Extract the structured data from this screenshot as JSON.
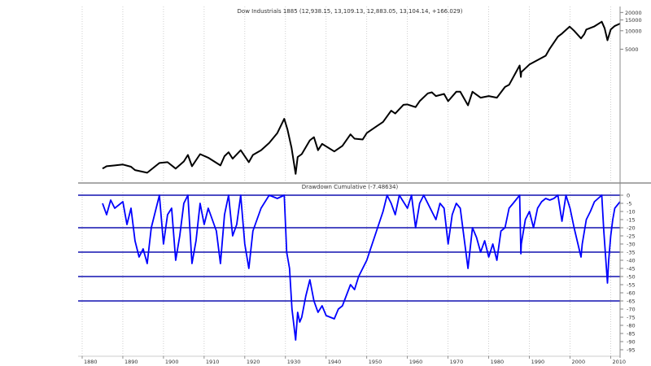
{
  "chart_data": [
    {
      "type": "line",
      "title": "Dow Industrials 1885 (12,938.15, 13,109.13, 12,883.05, 13,104.14, +166.029)",
      "scale": "log",
      "y_tick_labels": [
        "20000",
        "15000",
        "10000",
        "5000"
      ],
      "y_ticks": [
        20000,
        15000,
        10000,
        5000
      ],
      "ylim": [
        35,
        25000
      ],
      "series": [
        {
          "color": "#000000",
          "x": [
            1885,
            1886,
            1888,
            1890,
            1892,
            1893,
            1896,
            1899,
            1901,
            1903,
            1905,
            1906,
            1907,
            1909,
            1911,
            1914,
            1915,
            1916,
            1917,
            1919,
            1921,
            1922,
            1924,
            1926,
            1928,
            1929.7,
            1930.5,
            1931.5,
            1932.5,
            1933,
            1934,
            1936,
            1937,
            1938,
            1939,
            1942,
            1944,
            1946,
            1947,
            1949,
            1950,
            1952,
            1954,
            1956,
            1957,
            1959,
            1960,
            1962,
            1963,
            1965,
            1966,
            1967,
            1969,
            1970,
            1972,
            1973,
            1974.9,
            1976,
            1978,
            1980,
            1982,
            1984,
            1985,
            1987.6,
            1987.9,
            1988,
            1990,
            1992,
            1994,
            1995,
            1997,
            1998,
            1999.9,
            2001,
            2002.7,
            2003.5,
            2004,
            2006,
            2007.8,
            2008.5,
            2009.2,
            2010,
            2011,
            2012.3
          ],
          "values": [
            55,
            60,
            62,
            64,
            59,
            52,
            47,
            68,
            70,
            55,
            72,
            92,
            60,
            95,
            83,
            62,
            88,
            102,
            80,
            110,
            70,
            92,
            110,
            145,
            210,
            360,
            240,
            120,
            45,
            85,
            95,
            160,
            180,
            110,
            140,
            105,
            130,
            200,
            170,
            165,
            210,
            260,
            320,
            490,
            440,
            610,
            620,
            560,
            700,
            940,
            980,
            850,
            920,
            700,
            1000,
            1000,
            600,
            1000,
            800,
            850,
            800,
            1200,
            1300,
            2700,
            1750,
            2100,
            2800,
            3300,
            3900,
            5100,
            8000,
            9000,
            11700,
            10000,
            7500,
            8800,
            10500,
            11800,
            14100,
            11000,
            7000,
            10500,
            12000,
            13100
          ]
        }
      ]
    },
    {
      "type": "line",
      "title": "Drawdown Cumulative (-7.48634)",
      "y_tick_labels": [
        "0",
        "-5",
        "-10",
        "-15",
        "-20",
        "-25",
        "-30",
        "-35",
        "-40",
        "-45",
        "-50",
        "-55",
        "-60",
        "-65",
        "-70",
        "-75",
        "-80",
        "-85",
        "-90",
        "-95"
      ],
      "ylim": [
        -98,
        2
      ],
      "reference_lines": [
        0,
        -20,
        -35,
        -50,
        -65
      ],
      "x_tick_labels": [
        "1880",
        "1890",
        "1900",
        "1910",
        "1920",
        "1930",
        "1940",
        "1950",
        "1960",
        "1970",
        "1980",
        "1990",
        "2000",
        "2010"
      ],
      "x_ticks": [
        1880,
        1890,
        1900,
        1910,
        1920,
        1930,
        1940,
        1950,
        1960,
        1970,
        1980,
        1990,
        2000,
        2010
      ],
      "xlim": [
        1879,
        2012.3
      ],
      "series": [
        {
          "color": "#0000ff",
          "x": [
            1885,
            1886,
            1887,
            1888,
            1890,
            1891,
            1892,
            1893,
            1894,
            1895,
            1896,
            1897,
            1898,
            1899,
            1900,
            1901,
            1902,
            1903,
            1904,
            1905,
            1906,
            1907,
            1908,
            1909,
            1910,
            1911,
            1913,
            1914,
            1915,
            1916,
            1917,
            1918,
            1919,
            1920,
            1921,
            1922,
            1924,
            1926,
            1928,
            1929.7,
            1930.3,
            1931,
            1931.6,
            1932.5,
            1933,
            1933.5,
            1934,
            1935,
            1936,
            1937,
            1938,
            1939,
            1940,
            1941,
            1942,
            1943,
            1944,
            1946,
            1947,
            1948,
            1950,
            1952,
            1954,
            1955,
            1956,
            1957,
            1958,
            1960,
            1961,
            1962,
            1963,
            1964,
            1966,
            1967,
            1968,
            1969,
            1970,
            1971,
            1972,
            1973,
            1974.9,
            1976,
            1977,
            1978,
            1979,
            1980,
            1981,
            1982,
            1983,
            1984,
            1985,
            1986,
            1987.6,
            1987.9,
            1988,
            1989,
            1990,
            1991,
            1992,
            1993,
            1994,
            1995,
            1996,
            1997,
            1998,
            1999,
            2000,
            2001,
            2002.7,
            2003,
            2004,
            2005,
            2006,
            2007.8,
            2008.3,
            2009.2,
            2009.5,
            2010,
            2010.5,
            2011,
            2012.3
          ],
          "values": [
            -5,
            -12,
            -3,
            -8,
            -4,
            -18,
            -8,
            -28,
            -38,
            -33,
            -42,
            -20,
            -10,
            0,
            -30,
            -12,
            -8,
            -40,
            -25,
            -5,
            0,
            -42,
            -28,
            -5,
            -18,
            -8,
            -22,
            -42,
            -12,
            0,
            -25,
            -18,
            0,
            -30,
            -45,
            -22,
            -8,
            0,
            -2,
            0,
            -35,
            -45,
            -70,
            -89,
            -72,
            -78,
            -75,
            -62,
            -52,
            -65,
            -72,
            -68,
            -74,
            -75,
            -76,
            -70,
            -68,
            -55,
            -58,
            -50,
            -40,
            -25,
            -10,
            0,
            -5,
            -12,
            0,
            -8,
            0,
            -20,
            -5,
            0,
            -10,
            -15,
            -5,
            -8,
            -30,
            -12,
            -5,
            -8,
            -45,
            -20,
            -26,
            -35,
            -28,
            -38,
            -30,
            -40,
            -22,
            -20,
            -8,
            -5,
            0,
            -36,
            -30,
            -15,
            -10,
            -20,
            -8,
            -4,
            -2,
            -3,
            -2,
            0,
            -16,
            0,
            -8,
            -20,
            -38,
            -30,
            -15,
            -10,
            -4,
            0,
            -22,
            -54,
            -40,
            -25,
            -15,
            -8,
            -4
          ]
        }
      ]
    }
  ]
}
